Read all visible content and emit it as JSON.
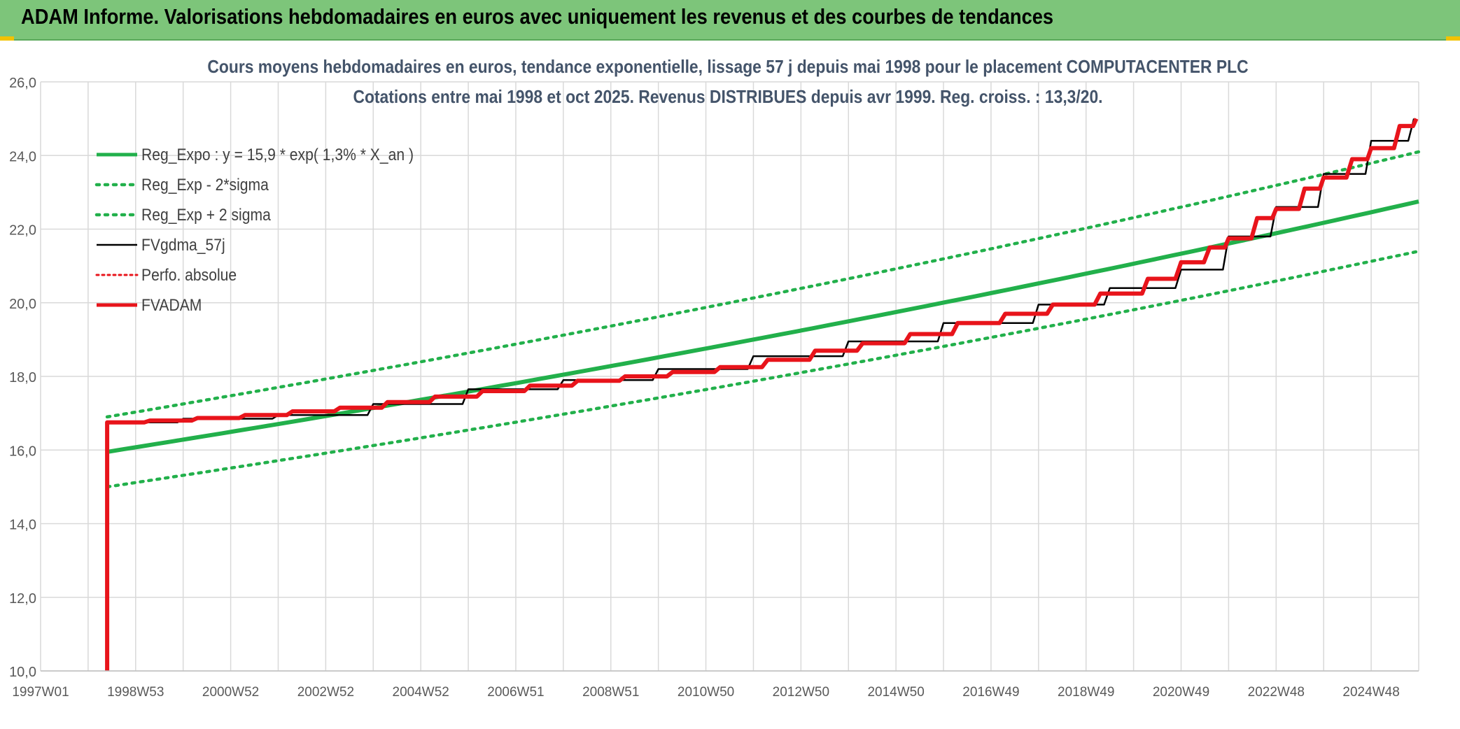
{
  "header": {
    "title": "ADAM Informe. Valorisations hebdomadaires en euros avec uniquement les revenus et des courbes de tendances"
  },
  "colors": {
    "header_bg": "#7dc57a",
    "reg_green": "#22b04b",
    "fvgdma": "#000000",
    "fvadam": "#e8141b",
    "perfo": "#e8141b",
    "grid": "#d9d9d9"
  },
  "chart_data": {
    "type": "line",
    "title": "Cours moyens hebdomadaires en euros, tendance exponentielle, lissage 57 j depuis mai 1998 pour le placement COMPUTACENTER PLC",
    "subtitle": "Cotations entre mai 1998 et oct 2025. Revenus DISTRIBUES depuis avr 1999. Reg. croiss. : 13,3/20.",
    "xlabel": "",
    "ylabel": "",
    "ylim": [
      10,
      26
    ],
    "xlim": [
      1997.0,
      2026.0
    ],
    "yticks": [
      "10,0",
      "12,0",
      "14,0",
      "16,0",
      "18,0",
      "20,0",
      "22,0",
      "24,0",
      "26,0"
    ],
    "xticks": [
      {
        "label": "1997W01",
        "x": 1997.0
      },
      {
        "label": "1998W53",
        "x": 1999.0
      },
      {
        "label": "2000W52",
        "x": 2001.0
      },
      {
        "label": "2002W52",
        "x": 2003.0
      },
      {
        "label": "2004W52",
        "x": 2005.0
      },
      {
        "label": "2006W51",
        "x": 2007.0
      },
      {
        "label": "2008W51",
        "x": 2009.0
      },
      {
        "label": "2010W50",
        "x": 2011.0
      },
      {
        "label": "2012W50",
        "x": 2013.0
      },
      {
        "label": "2014W50",
        "x": 2015.0
      },
      {
        "label": "2016W49",
        "x": 2017.0
      },
      {
        "label": "2018W49",
        "x": 2019.0
      },
      {
        "label": "2020W49",
        "x": 2021.0
      },
      {
        "label": "2022W48",
        "x": 2023.0
      },
      {
        "label": "2024W48",
        "x": 2025.0
      }
    ],
    "legend_position": "top-left",
    "grid": true,
    "series": [
      {
        "name": "Reg_Expo : y = 15,9 * exp( 1,3% *  X_an )",
        "style": "solid-thick-green",
        "x": [
          1998.4,
          2026.0
        ],
        "y": [
          15.95,
          22.75
        ],
        "curve": "exponential"
      },
      {
        "name": "Reg_Exp - 2*sigma",
        "style": "dotted-green",
        "x": [
          1998.4,
          2026.0
        ],
        "y": [
          15.0,
          21.4
        ],
        "curve": "exponential"
      },
      {
        "name": "Reg_Exp + 2 sigma",
        "style": "dotted-green",
        "x": [
          1998.4,
          2026.0
        ],
        "y": [
          16.9,
          24.1
        ],
        "curve": "exponential"
      },
      {
        "name": "FVgdma_57j",
        "style": "solid-black",
        "x": [
          1998.4,
          1998.4,
          2000,
          2002,
          2004,
          2006,
          2008,
          2010,
          2012,
          2014,
          2016,
          2018,
          2019.5,
          2021,
          2022,
          2023,
          2024,
          2025,
          2025.9
        ],
        "y": [
          10.0,
          16.75,
          16.85,
          16.95,
          17.25,
          17.65,
          17.9,
          18.2,
          18.55,
          18.95,
          19.45,
          19.95,
          20.4,
          20.9,
          21.8,
          22.6,
          23.5,
          24.4,
          25.0
        ]
      },
      {
        "name": "Perfo. absolue",
        "style": "dotted-red",
        "x": [
          1998.4,
          2025.9
        ],
        "y": [
          16.75,
          25.0
        ]
      },
      {
        "name": "FVADAM",
        "style": "solid-thick-red",
        "x": [
          1998.4,
          1998.4,
          1999.3,
          2000.3,
          2001.3,
          2002.3,
          2003.3,
          2004.3,
          2005.3,
          2006.3,
          2007.3,
          2008.3,
          2009.3,
          2010.3,
          2011.3,
          2012.3,
          2013.3,
          2014.3,
          2015.3,
          2016.3,
          2017.3,
          2018.3,
          2019.3,
          2020.3,
          2021.0,
          2021.6,
          2022.0,
          2022.6,
          2023.0,
          2023.6,
          2024.0,
          2024.6,
          2025.0,
          2025.6,
          2025.95
        ],
        "y": [
          10.0,
          16.75,
          16.8,
          16.87,
          16.95,
          17.05,
          17.15,
          17.3,
          17.45,
          17.6,
          17.75,
          17.88,
          18.0,
          18.12,
          18.25,
          18.45,
          18.7,
          18.9,
          19.15,
          19.45,
          19.7,
          19.95,
          20.25,
          20.65,
          21.1,
          21.5,
          21.75,
          22.3,
          22.55,
          23.1,
          23.4,
          23.9,
          24.2,
          24.8,
          25.0
        ]
      }
    ]
  }
}
